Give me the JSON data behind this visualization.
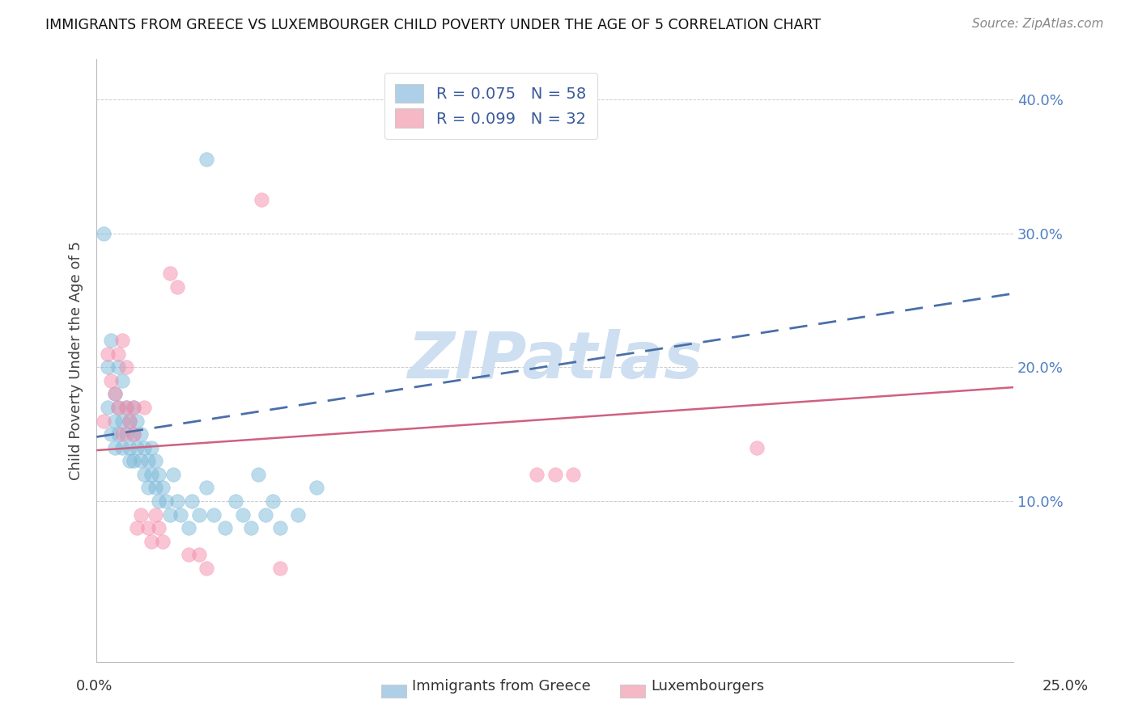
{
  "title": "IMMIGRANTS FROM GREECE VS LUXEMBOURGER CHILD POVERTY UNDER THE AGE OF 5 CORRELATION CHART",
  "source": "Source: ZipAtlas.com",
  "ylabel": "Child Poverty Under the Age of 5",
  "xlim": [
    0.0,
    0.25
  ],
  "ylim": [
    -0.02,
    0.43
  ],
  "legend1_label": "R = 0.075   N = 58",
  "legend2_label": "R = 0.099   N = 32",
  "legend1_color": "#aecfe8",
  "legend2_color": "#f5b8c4",
  "series1_color": "#7bb8d8",
  "series2_color": "#f48caa",
  "trendline1_color": "#4a6fa8",
  "trendline2_color": "#d06080",
  "trendline1_style": "--",
  "trendline2_style": "-",
  "watermark": "ZIPatlas",
  "watermark_color": "#cddff0",
  "legend_text_color": "#3a5a9a",
  "right_tick_color": "#5080c0",
  "greece_x": [
    0.002,
    0.003,
    0.003,
    0.004,
    0.004,
    0.005,
    0.005,
    0.005,
    0.006,
    0.006,
    0.006,
    0.007,
    0.007,
    0.007,
    0.008,
    0.008,
    0.009,
    0.009,
    0.009,
    0.01,
    0.01,
    0.01,
    0.011,
    0.011,
    0.012,
    0.012,
    0.013,
    0.013,
    0.014,
    0.014,
    0.015,
    0.015,
    0.016,
    0.016,
    0.017,
    0.017,
    0.018,
    0.019,
    0.02,
    0.021,
    0.022,
    0.023,
    0.025,
    0.026,
    0.028,
    0.03,
    0.032,
    0.035,
    0.038,
    0.04,
    0.042,
    0.044,
    0.046,
    0.048,
    0.05,
    0.055,
    0.06,
    0.03
  ],
  "greece_y": [
    0.3,
    0.2,
    0.17,
    0.22,
    0.15,
    0.18,
    0.16,
    0.14,
    0.2,
    0.17,
    0.15,
    0.19,
    0.16,
    0.14,
    0.17,
    0.15,
    0.16,
    0.14,
    0.13,
    0.17,
    0.15,
    0.13,
    0.16,
    0.14,
    0.15,
    0.13,
    0.14,
    0.12,
    0.13,
    0.11,
    0.14,
    0.12,
    0.13,
    0.11,
    0.12,
    0.1,
    0.11,
    0.1,
    0.09,
    0.12,
    0.1,
    0.09,
    0.08,
    0.1,
    0.09,
    0.11,
    0.09,
    0.08,
    0.1,
    0.09,
    0.08,
    0.12,
    0.09,
    0.1,
    0.08,
    0.09,
    0.11,
    0.355
  ],
  "lux_x": [
    0.002,
    0.003,
    0.004,
    0.005,
    0.006,
    0.006,
    0.007,
    0.007,
    0.008,
    0.008,
    0.009,
    0.01,
    0.01,
    0.011,
    0.012,
    0.013,
    0.014,
    0.015,
    0.016,
    0.017,
    0.018,
    0.02,
    0.022,
    0.025,
    0.028,
    0.03,
    0.05,
    0.12,
    0.125,
    0.13,
    0.045,
    0.18
  ],
  "lux_y": [
    0.16,
    0.21,
    0.19,
    0.18,
    0.21,
    0.17,
    0.22,
    0.15,
    0.2,
    0.17,
    0.16,
    0.17,
    0.15,
    0.08,
    0.09,
    0.17,
    0.08,
    0.07,
    0.09,
    0.08,
    0.07,
    0.27,
    0.26,
    0.06,
    0.06,
    0.05,
    0.05,
    0.12,
    0.12,
    0.12,
    0.325,
    0.14
  ],
  "trendline1_x0": 0.0,
  "trendline1_y0": 0.148,
  "trendline1_x1": 0.25,
  "trendline1_y1": 0.255,
  "trendline2_x0": 0.0,
  "trendline2_y0": 0.138,
  "trendline2_x1": 0.25,
  "trendline2_y1": 0.185
}
